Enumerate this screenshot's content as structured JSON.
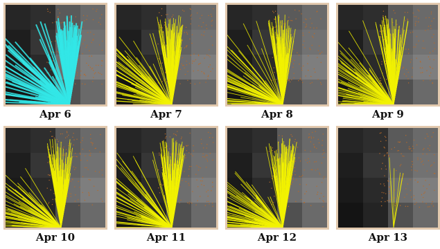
{
  "panels": [
    {
      "label": "Apr 6",
      "beam_color": "#33e6e6"
    },
    {
      "label": "Apr 7",
      "beam_color": "#f2f200"
    },
    {
      "label": "Apr 8",
      "beam_color": "#f2f200"
    },
    {
      "label": "Apr 9",
      "beam_color": "#f2f200"
    },
    {
      "label": "Apr 10",
      "beam_color": "#f2f200"
    },
    {
      "label": "Apr 11",
      "beam_color": "#f2f200"
    },
    {
      "label": "Apr 12",
      "beam_color": "#f2f200"
    },
    {
      "label": "Apr 13",
      "beam_color": "#f2f200"
    }
  ],
  "colors": {
    "frame_border": "#e2c9ae",
    "scatter_points": "#b86a2a"
  }
}
